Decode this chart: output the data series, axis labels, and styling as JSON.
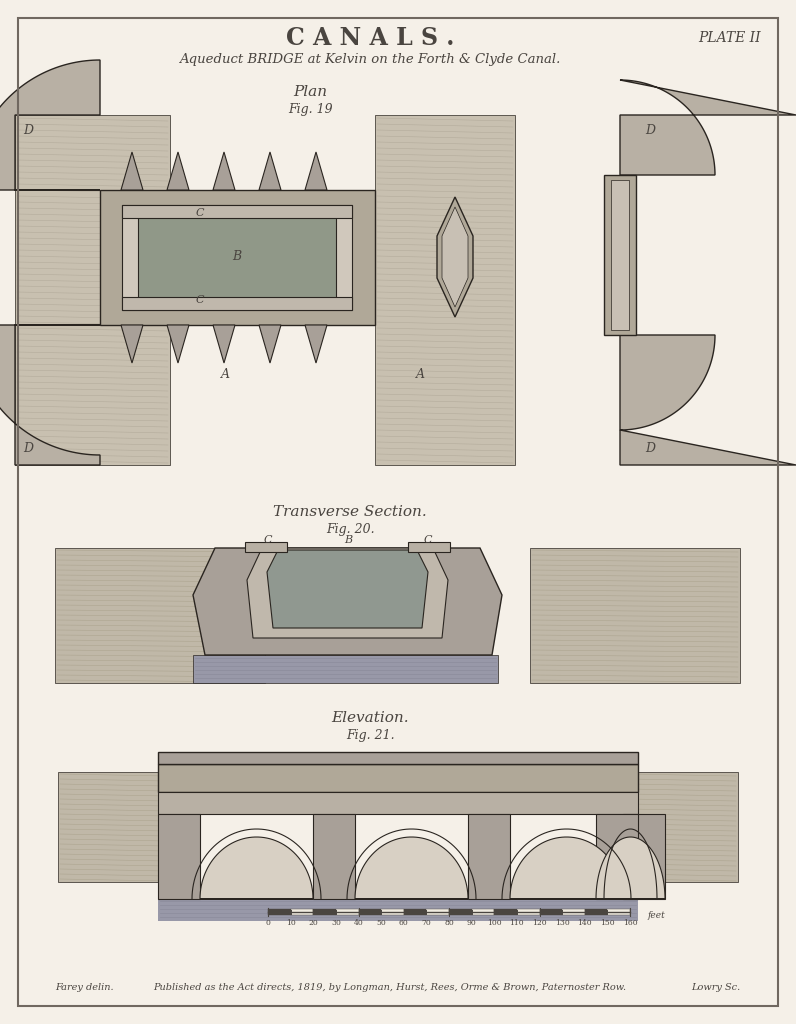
{
  "bg_color": "#f5f0e8",
  "title": "C A N A L S .",
  "plate": "PLATE II",
  "subtitle": "Aqueduct BRIDGE at Kelvin on the Forth & Clyde Canal.",
  "plan_label": "Plan",
  "plan_fig": "Fig. 19",
  "section_label": "Transverse Section.",
  "section_fig": "Fig. 20.",
  "elevation_label": "Elevation.",
  "elevation_fig": "Fig. 21.",
  "footer_left": "Farey delin.",
  "footer_center": "Published as the Act directs, 1819, by Longman, Hurst, Rees, Orme & Brown, Paternoster Row.",
  "footer_right": "Lowry Sc.",
  "dark_gray": "#4a4540",
  "mid_gray": "#8a8278",
  "light_gray": "#b8b0a4",
  "very_light_gray": "#ccc4b8",
  "stone_color": "#a09890",
  "hatching_color": "#6a6258",
  "outline_color": "#2a2520",
  "paper_color": "#f0ebe0"
}
